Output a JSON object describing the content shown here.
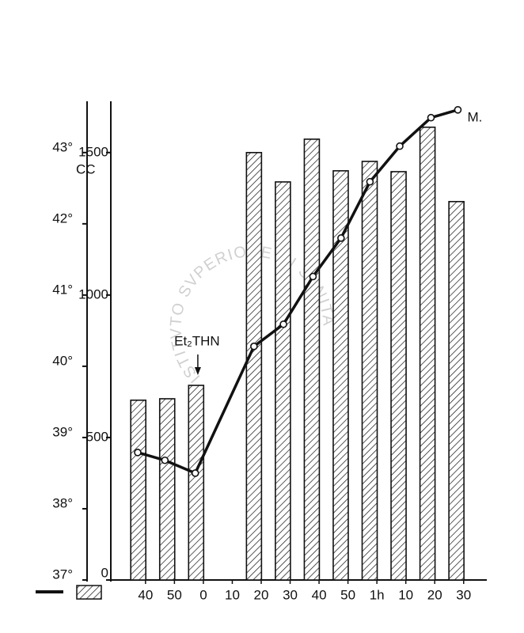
{
  "chart_data": {
    "type": "bar-line",
    "series": [
      {
        "type": "bar",
        "axis": "y2",
        "color": "#111",
        "x": [
          -22.5,
          -12.5,
          -2.5,
          17.5,
          27.5,
          37.5,
          47.5,
          57.5,
          67.5,
          77.5,
          87.5
        ],
        "values": [
          631,
          636,
          683,
          1500,
          1397,
          1547,
          1436,
          1469,
          1433,
          1589,
          1328
        ]
      },
      {
        "type": "line",
        "axis": "y",
        "color": "#111",
        "x": [
          -22.7,
          -13.3,
          -2.8,
          17.5,
          27.7,
          37.9,
          47.6,
          57.6,
          67.9,
          78.7,
          88
        ],
        "values": [
          38.79,
          38.68,
          38.5,
          40.28,
          40.59,
          41.26,
          41.8,
          42.59,
          43.09,
          43.49,
          43.6
        ]
      }
    ],
    "xlim": [
      -32,
      98
    ],
    "xticks": [
      {
        "value": -20,
        "label": "40"
      },
      {
        "value": -10,
        "label": "50"
      },
      0,
      10,
      20,
      30,
      40,
      50,
      {
        "value": 60,
        "label": "1h"
      },
      {
        "value": 70,
        "label": "10"
      },
      {
        "value": 80,
        "label": "20"
      },
      {
        "value": 90,
        "label": "30"
      }
    ],
    "ylim": [
      37,
      43.72
    ],
    "yticks": [
      {
        "value": 37,
        "label": "37°"
      },
      {
        "value": 38,
        "label": "38°"
      },
      {
        "value": 39,
        "label": "39°"
      },
      {
        "value": 40,
        "label": "40°"
      },
      {
        "value": 41,
        "label": "41°"
      },
      {
        "value": 42,
        "label": "42°"
      },
      {
        "value": 43,
        "label": "43°"
      }
    ],
    "y2lim": [
      0,
      1680
    ],
    "y2ticks": [
      0,
      500,
      1000,
      1500
    ],
    "y2label": "CC",
    "annotation_injection": "Et₂THN",
    "annotation_end": "M.",
    "watermark": "ISTITVTO SVPERIORE DI SANITA"
  }
}
